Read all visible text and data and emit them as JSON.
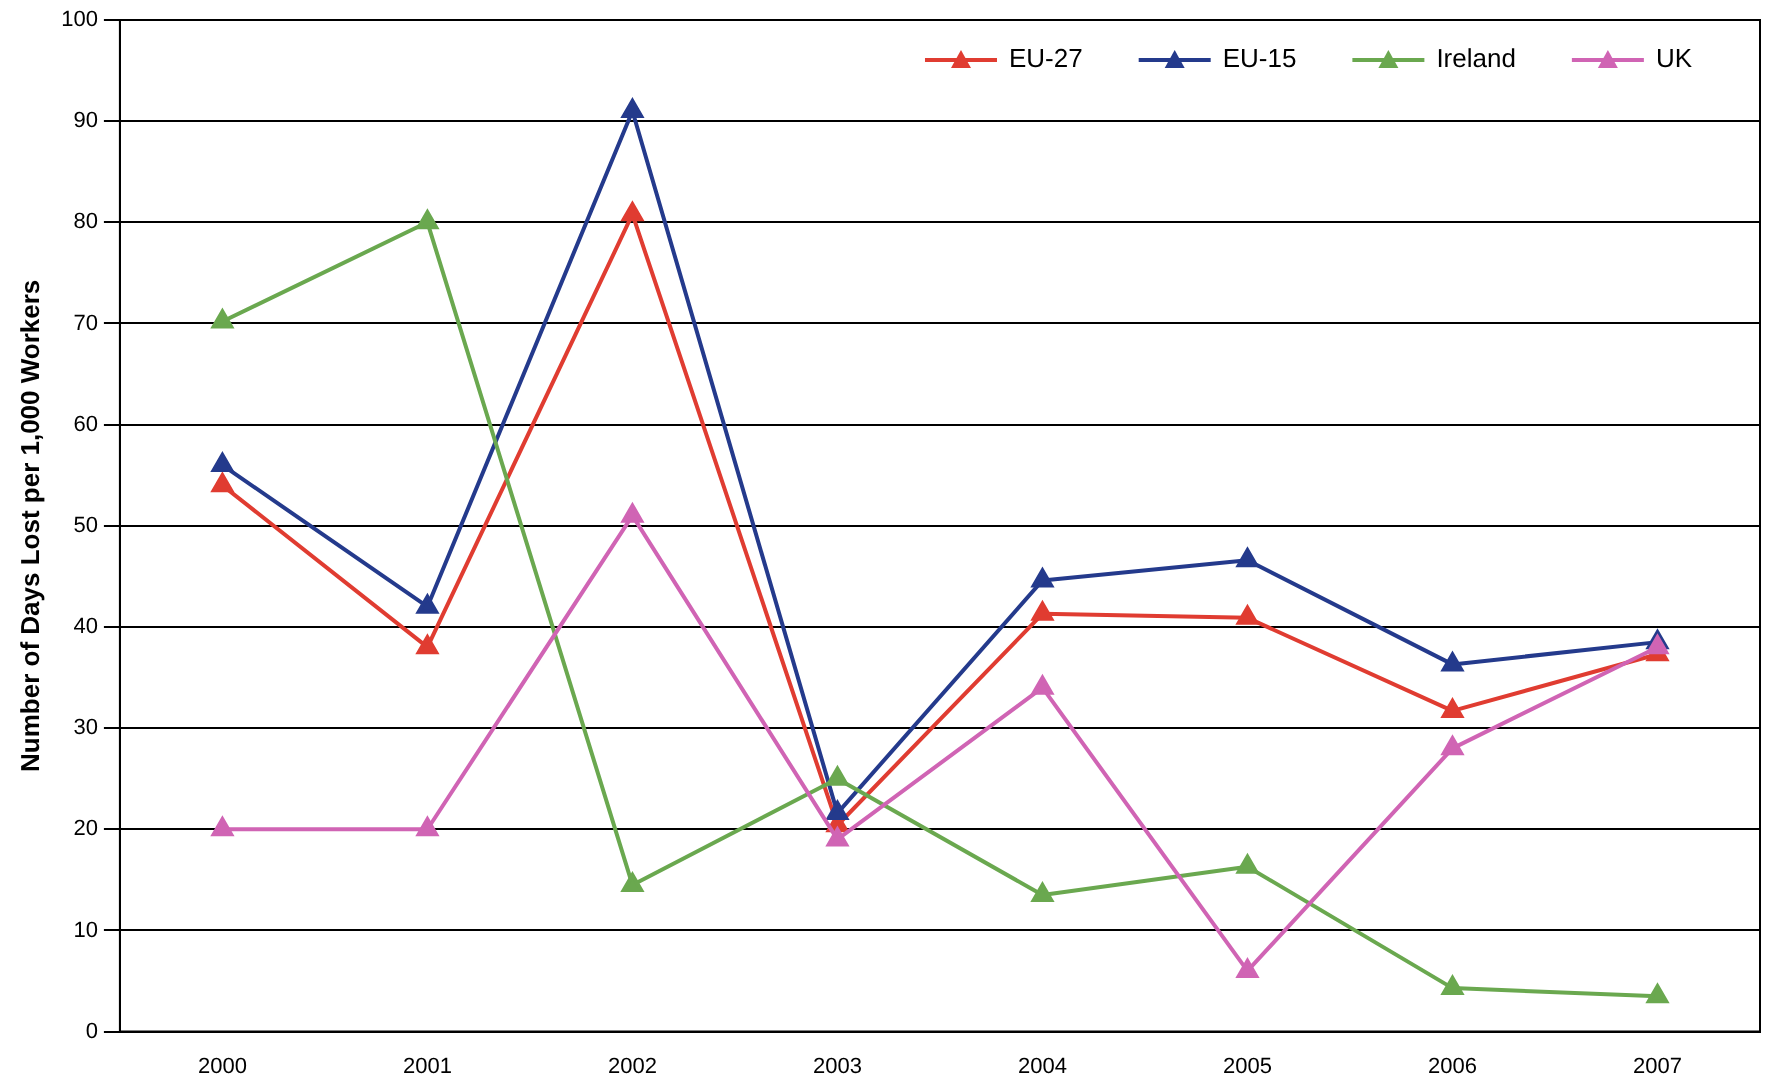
{
  "chart_data": {
    "type": "line",
    "ylabel": "Number of Days Lost per 1,000 Workers",
    "categories": [
      "2000",
      "2001",
      "2002",
      "2003",
      "2004",
      "2005",
      "2006",
      "2007"
    ],
    "series": [
      {
        "name": "EU-27",
        "color": "#e03c31",
        "values": [
          54,
          38,
          80.8,
          20.4,
          41.3,
          40.9,
          31.7,
          37.3
        ]
      },
      {
        "name": "EU-15",
        "color": "#243a8c",
        "values": [
          56,
          42,
          91,
          21.6,
          44.6,
          46.6,
          36.3,
          38.5
        ]
      },
      {
        "name": "Ireland",
        "color": "#6aa84f",
        "values": [
          70.2,
          80,
          14.5,
          25,
          13.5,
          16.3,
          4.3,
          3.5
        ]
      },
      {
        "name": "UK",
        "color": "#d064b4",
        "values": [
          20,
          20,
          51,
          19,
          34,
          6,
          28,
          38
        ]
      }
    ],
    "ylim": [
      0,
      100
    ],
    "yticks": [
      0,
      10,
      20,
      30,
      40,
      50,
      60,
      70,
      80,
      90,
      100
    ],
    "grid": "y",
    "legend": "top right",
    "marker": "triangle",
    "line_style": "solid"
  }
}
